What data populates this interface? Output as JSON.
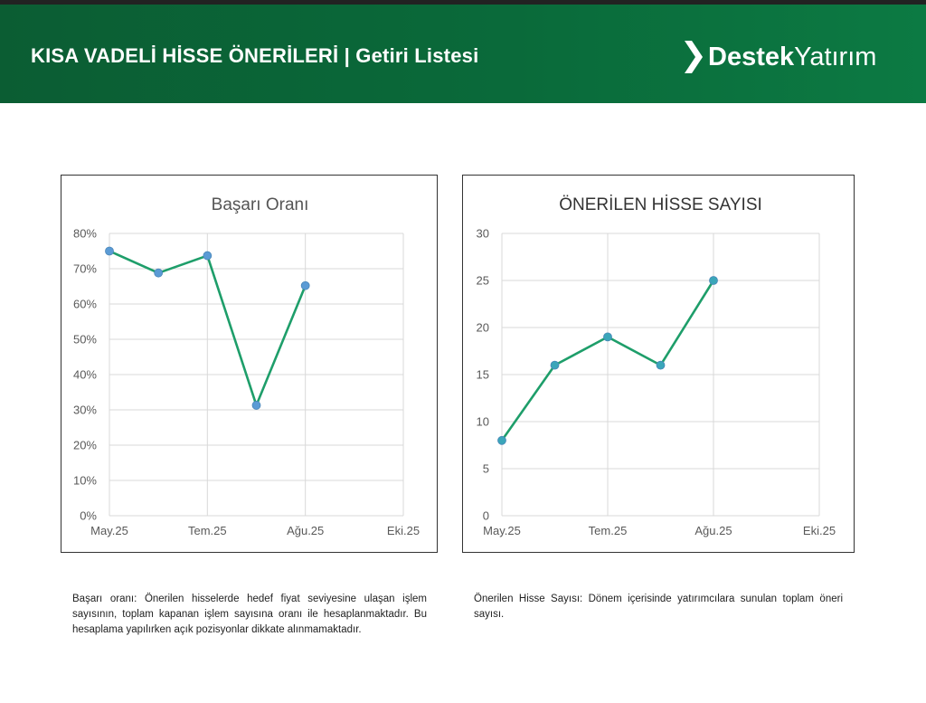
{
  "header": {
    "title": "KISA VADELİ HİSSE ÖNERİLERİ | Getiri Listesi",
    "logo_bold": "Destek",
    "logo_light": "Yatırım",
    "colors": {
      "background": "#0a6a3a",
      "text": "#ffffff"
    }
  },
  "chart_data": [
    {
      "type": "line",
      "title": "Başarı Oranı",
      "x_tick_labels": [
        "May.25",
        "Tem.25",
        "Ağu.25",
        "Eki.25"
      ],
      "y_tick_labels": [
        "0%",
        "10%",
        "20%",
        "30%",
        "40%",
        "50%",
        "60%",
        "70%",
        "80%"
      ],
      "ylim": [
        0,
        80
      ],
      "y_unit": "%",
      "points": [
        {
          "x": "2025-05",
          "y": 75
        },
        {
          "x": "2025-06",
          "y": 68.8
        },
        {
          "x": "2025-07",
          "y": 73.7
        },
        {
          "x": "2025-08",
          "y": 31.3
        },
        {
          "x": "2025-09",
          "y": 65.2
        }
      ],
      "line_color": "#1e9e6a",
      "marker_color": "#5b9bd5",
      "grid": true
    },
    {
      "type": "line",
      "title": "ÖNERİLEN HİSSE SAYISI",
      "x_tick_labels": [
        "May.25",
        "Tem.25",
        "Ağu.25",
        "Eki.25"
      ],
      "y_tick_labels": [
        "0",
        "5",
        "10",
        "15",
        "20",
        "25",
        "30"
      ],
      "ylim": [
        0,
        30
      ],
      "points": [
        {
          "x": "2025-05",
          "y": 8
        },
        {
          "x": "2025-06",
          "y": 16
        },
        {
          "x": "2025-07",
          "y": 19
        },
        {
          "x": "2025-08",
          "y": 16
        },
        {
          "x": "2025-09",
          "y": 25
        }
      ],
      "line_color": "#1e9e6a",
      "marker_color": "#3aa6b9",
      "grid": true
    }
  ],
  "notes": {
    "left": "Başarı oranı: Önerilen hisselerde hedef fiyat seviyesine ulaşan işlem sayısının, toplam kapanan işlem sayısına oranı ile hesaplanmaktadır. Bu hesaplama yapılırken açık pozisyonlar dikkate alınmamaktadır.",
    "right": "Önerilen Hisse Sayısı: Dönem içerisinde yatırımcılara sunulan toplam öneri sayısı."
  }
}
